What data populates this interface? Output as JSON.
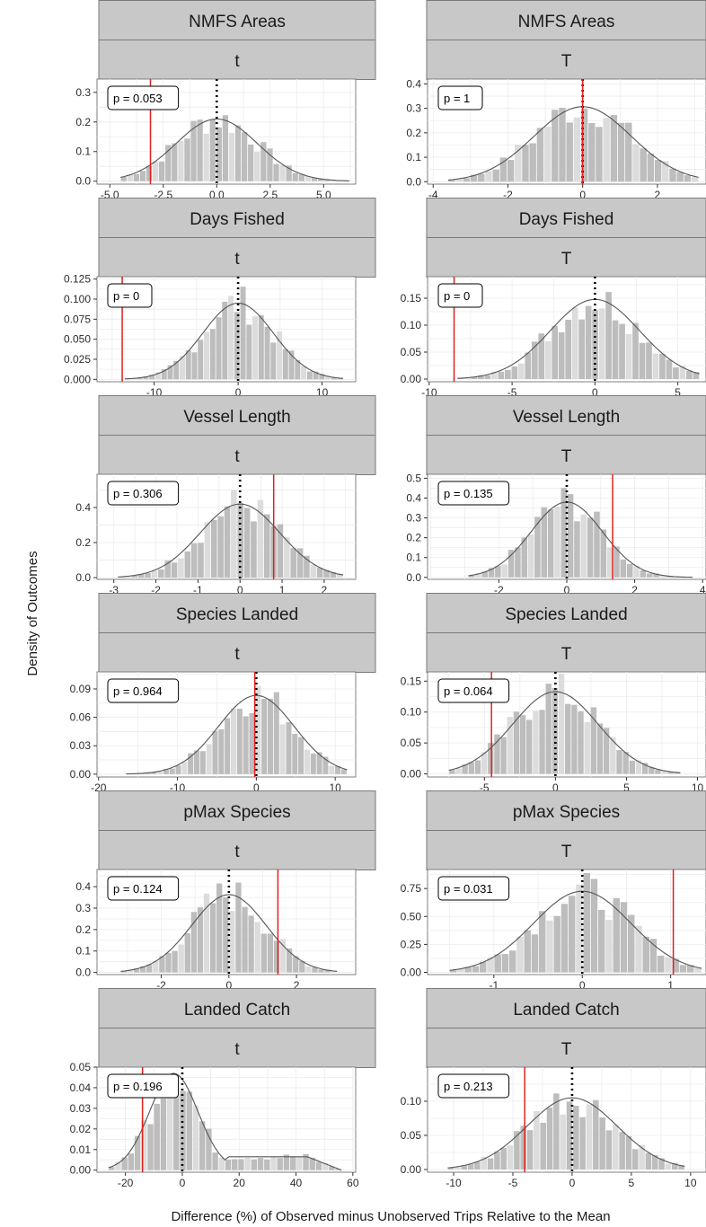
{
  "figure": {
    "xlabel": "Difference (%) of Observed minus Unobserved Trips Relative to the Mean",
    "ylabel": "Density of Outcomes"
  },
  "chart_data": [
    {
      "type": "bar",
      "variable": "NMFS Areas",
      "stat": "t",
      "pvalue_label": "p = 0.053",
      "observed": -3.1,
      "xlim": [
        -5.6,
        6.5
      ],
      "ylim": [
        -0.01,
        0.345
      ],
      "xticks": [
        -5.0,
        -2.5,
        0.0,
        2.5,
        5.0
      ],
      "xtick_labels": [
        "-5.0",
        "-2.5",
        "0.0",
        "2.5",
        "5.0"
      ],
      "yticks": [
        0.0,
        0.1,
        0.2,
        0.3
      ],
      "ytick_labels": [
        "0.0",
        "0.1",
        "0.2",
        "0.3"
      ],
      "mean": 0,
      "sd": 1.9,
      "range": [
        -4.5,
        6.2
      ],
      "bins": 36
    },
    {
      "type": "bar",
      "variable": "NMFS Areas",
      "stat": "T",
      "pvalue_label": "p = 1",
      "observed": 0.0,
      "xlim": [
        -4.15,
        3.3
      ],
      "ylim": [
        -0.01,
        0.42
      ],
      "xticks": [
        -4,
        -2,
        0,
        2
      ],
      "xtick_labels": [
        "-4",
        "-2",
        "0",
        "2"
      ],
      "yticks": [
        0.0,
        0.1,
        0.2,
        0.3,
        0.4
      ],
      "ytick_labels": [
        "0.0",
        "0.1",
        "0.2",
        "0.3",
        "0.4"
      ],
      "mean": 0,
      "sd": 1.3,
      "range": [
        -3.6,
        3.1
      ],
      "bins": 34
    },
    {
      "type": "bar",
      "variable": "Days Fished",
      "stat": "t",
      "pvalue_label": "p = 0",
      "observed": -13.8,
      "xlim": [
        -16.8,
        14.0
      ],
      "ylim": [
        -0.003,
        0.128
      ],
      "xticks": [
        -10,
        0,
        10
      ],
      "xtick_labels": [
        "-10",
        "0",
        "10"
      ],
      "yticks": [
        0.0,
        0.025,
        0.05,
        0.075,
        0.1,
        0.125
      ],
      "ytick_labels": [
        "0.000",
        "0.025",
        "0.050",
        "0.075",
        "0.100",
        "0.125"
      ],
      "mean": 0,
      "sd": 4.2,
      "range": [
        -13.5,
        12.5
      ],
      "bins": 36
    },
    {
      "type": "bar",
      "variable": "Days Fished",
      "stat": "T",
      "pvalue_label": "p = 0",
      "observed": -8.5,
      "xlim": [
        -10.1,
        6.7
      ],
      "ylim": [
        -0.005,
        0.19
      ],
      "xticks": [
        -10,
        -5,
        0,
        5
      ],
      "xtick_labels": [
        "-10",
        "-5",
        "0",
        "5"
      ],
      "yticks": [
        0.0,
        0.05,
        0.1,
        0.15
      ],
      "ytick_labels": [
        "0.00",
        "0.05",
        "0.10",
        "0.15"
      ],
      "mean": 0,
      "sd": 2.7,
      "range": [
        -8.3,
        6.3
      ],
      "bins": 36
    },
    {
      "type": "bar",
      "variable": "Vessel Length",
      "stat": "t",
      "pvalue_label": "p = 0.306",
      "observed": 0.8,
      "xlim": [
        -3.4,
        2.75
      ],
      "ylim": [
        -0.01,
        0.59
      ],
      "xticks": [
        -3,
        -2,
        -1,
        0,
        1,
        2
      ],
      "xtick_labels": [
        "-3",
        "-2",
        "-1",
        "0",
        "1",
        "2"
      ],
      "yticks": [
        0.0,
        0.2,
        0.4
      ],
      "ytick_labels": [
        "0.0",
        "0.2",
        "0.4"
      ],
      "mean": 0,
      "sd": 0.95,
      "range": [
        -2.9,
        2.45
      ],
      "bins": 34
    },
    {
      "type": "bar",
      "variable": "Vessel Length",
      "stat": "T",
      "pvalue_label": "p = 0.135",
      "observed": 1.35,
      "xlim": [
        -4.1,
        4.1
      ],
      "ylim": [
        -0.01,
        0.52
      ],
      "xticks": [
        -2,
        0,
        2,
        4
      ],
      "xtick_labels": [
        "-2",
        "0",
        "2",
        "4"
      ],
      "yticks": [
        0.0,
        0.1,
        0.2,
        0.3,
        0.4,
        0.5
      ],
      "ytick_labels": [
        "0.0",
        "0.1",
        "0.2",
        "0.3",
        "0.4",
        "0.5"
      ],
      "mean": 0,
      "sd": 1.05,
      "range": [
        -2.9,
        3.7
      ],
      "bins": 34
    },
    {
      "type": "bar",
      "variable": "Species Landed",
      "stat": "t",
      "pvalue_label": "p = 0.964",
      "observed": -0.2,
      "xlim": [
        -20.2,
        12.6
      ],
      "ylim": [
        -0.003,
        0.108
      ],
      "xticks": [
        -20,
        -10,
        0,
        10
      ],
      "xtick_labels": [
        "-20",
        "-10",
        "0",
        "10"
      ],
      "yticks": [
        0.0,
        0.03,
        0.06,
        0.09
      ],
      "ytick_labels": [
        "0.00",
        "0.03",
        "0.06",
        "0.09"
      ],
      "mean": 0,
      "sd": 4.8,
      "range": [
        -16.5,
        11.5
      ],
      "bins": 36
    },
    {
      "type": "bar",
      "variable": "Species Landed",
      "stat": "T",
      "pvalue_label": "p = 0.064",
      "observed": -4.5,
      "xlim": [
        -9.0,
        10.6
      ],
      "ylim": [
        -0.005,
        0.165
      ],
      "xticks": [
        -5,
        0,
        5,
        10
      ],
      "xtick_labels": [
        "-5",
        "0",
        "5",
        "10"
      ],
      "yticks": [
        0.0,
        0.05,
        0.1,
        0.15
      ],
      "ytick_labels": [
        "0.00",
        "0.05",
        "0.10",
        "0.15"
      ],
      "mean": 0,
      "sd": 3.0,
      "range": [
        -7.5,
        8.8
      ],
      "bins": 36
    },
    {
      "type": "bar",
      "variable": "pMax Species",
      "stat": "t",
      "pvalue_label": "p = 0.124",
      "observed": 1.45,
      "xlim": [
        -3.9,
        3.75
      ],
      "ylim": [
        -0.01,
        0.48
      ],
      "xticks": [
        -2,
        0,
        2
      ],
      "xtick_labels": [
        "-2",
        "0",
        "2"
      ],
      "yticks": [
        0.0,
        0.1,
        0.2,
        0.3,
        0.4
      ],
      "ytick_labels": [
        "0.0",
        "0.1",
        "0.2",
        "0.3",
        "0.4"
      ],
      "mean": 0,
      "sd": 1.1,
      "range": [
        -3.2,
        3.2
      ],
      "bins": 34
    },
    {
      "type": "bar",
      "variable": "pMax Species",
      "stat": "T",
      "pvalue_label": "p = 0.031",
      "observed": 1.03,
      "xlim": [
        -1.75,
        1.4
      ],
      "ylim": [
        -0.02,
        0.92
      ],
      "xticks": [
        -1,
        0,
        1
      ],
      "xtick_labels": [
        "-1",
        "0",
        "1"
      ],
      "yticks": [
        0.0,
        0.25,
        0.5,
        0.75
      ],
      "ytick_labels": [
        "0.00",
        "0.25",
        "0.50",
        "0.75"
      ],
      "mean": 0,
      "sd": 0.55,
      "range": [
        -1.5,
        1.35
      ],
      "bins": 34
    },
    {
      "type": "bar",
      "variable": "Landed Catch",
      "stat": "t",
      "pvalue_label": "p = 0.196",
      "observed": -14.0,
      "xlim": [
        -30.0,
        61.0
      ],
      "ylim": [
        -0.001,
        0.05
      ],
      "xticks": [
        -20,
        0,
        20,
        40,
        60
      ],
      "xtick_labels": [
        "-20",
        "0",
        "20",
        "40",
        "60"
      ],
      "yticks": [
        0.0,
        0.01,
        0.02,
        0.03,
        0.04,
        0.05
      ],
      "ytick_labels": [
        "0.00",
        "0.01",
        "0.02",
        "0.03",
        "0.04",
        "0.05"
      ],
      "mean": -3,
      "sd": 8.5,
      "range": [
        -26,
        56
      ],
      "bins": 36,
      "tail_level": 0.0065
    },
    {
      "type": "bar",
      "variable": "Landed Catch",
      "stat": "T",
      "pvalue_label": "p = 0.213",
      "observed": -4.0,
      "xlim": [
        -12.2,
        11.3
      ],
      "ylim": [
        -0.004,
        0.15
      ],
      "xticks": [
        -10,
        -5,
        0,
        5,
        10
      ],
      "xtick_labels": [
        "-10",
        "-5",
        "0",
        "5",
        "10"
      ],
      "yticks": [
        0.0,
        0.05,
        0.1
      ],
      "ytick_labels": [
        "0.00",
        "0.05",
        "0.10"
      ],
      "mean": 0,
      "sd": 3.8,
      "range": [
        -10.5,
        9.5
      ],
      "bins": 36
    }
  ]
}
